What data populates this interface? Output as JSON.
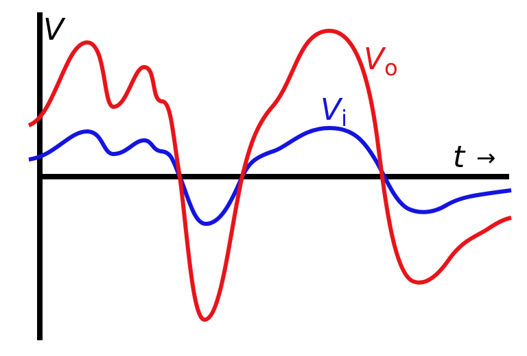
{
  "labels": {
    "y_axis": "V",
    "x_axis": "t",
    "x_arrow": "→",
    "output_main": "V",
    "output_sub": "o",
    "input_main": "V",
    "input_sub": "i"
  },
  "colors": {
    "axes": "#000000",
    "output": "#e8141b",
    "input": "#1414e0"
  }
}
